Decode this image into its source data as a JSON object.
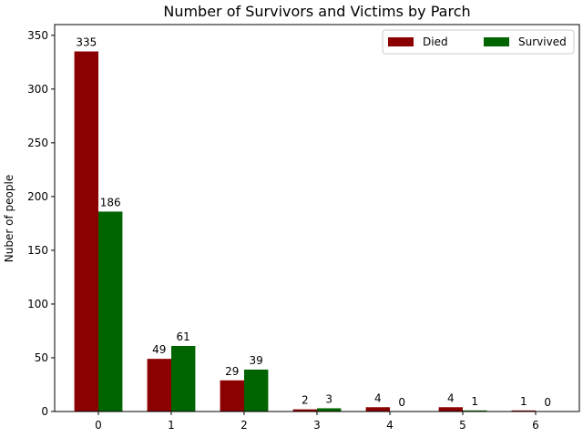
{
  "chart_data": {
    "type": "bar",
    "title": "Number of Survivors and Victims by Parch",
    "xlabel": "",
    "ylabel": "Nuber of people",
    "categories": [
      "0",
      "1",
      "2",
      "3",
      "4",
      "5",
      "6"
    ],
    "series": [
      {
        "name": "Died",
        "color": "#8b0000",
        "values": [
          335,
          49,
          29,
          2,
          4,
          4,
          1
        ]
      },
      {
        "name": "Survived",
        "color": "#006400",
        "values": [
          186,
          61,
          39,
          3,
          0,
          1,
          0
        ]
      }
    ],
    "ylim": [
      0,
      360
    ],
    "yticks": [
      0,
      50,
      100,
      150,
      200,
      250,
      300,
      350
    ],
    "grid": false,
    "legend_position": "top-right",
    "legend_columns": 2,
    "data_labels": true
  }
}
